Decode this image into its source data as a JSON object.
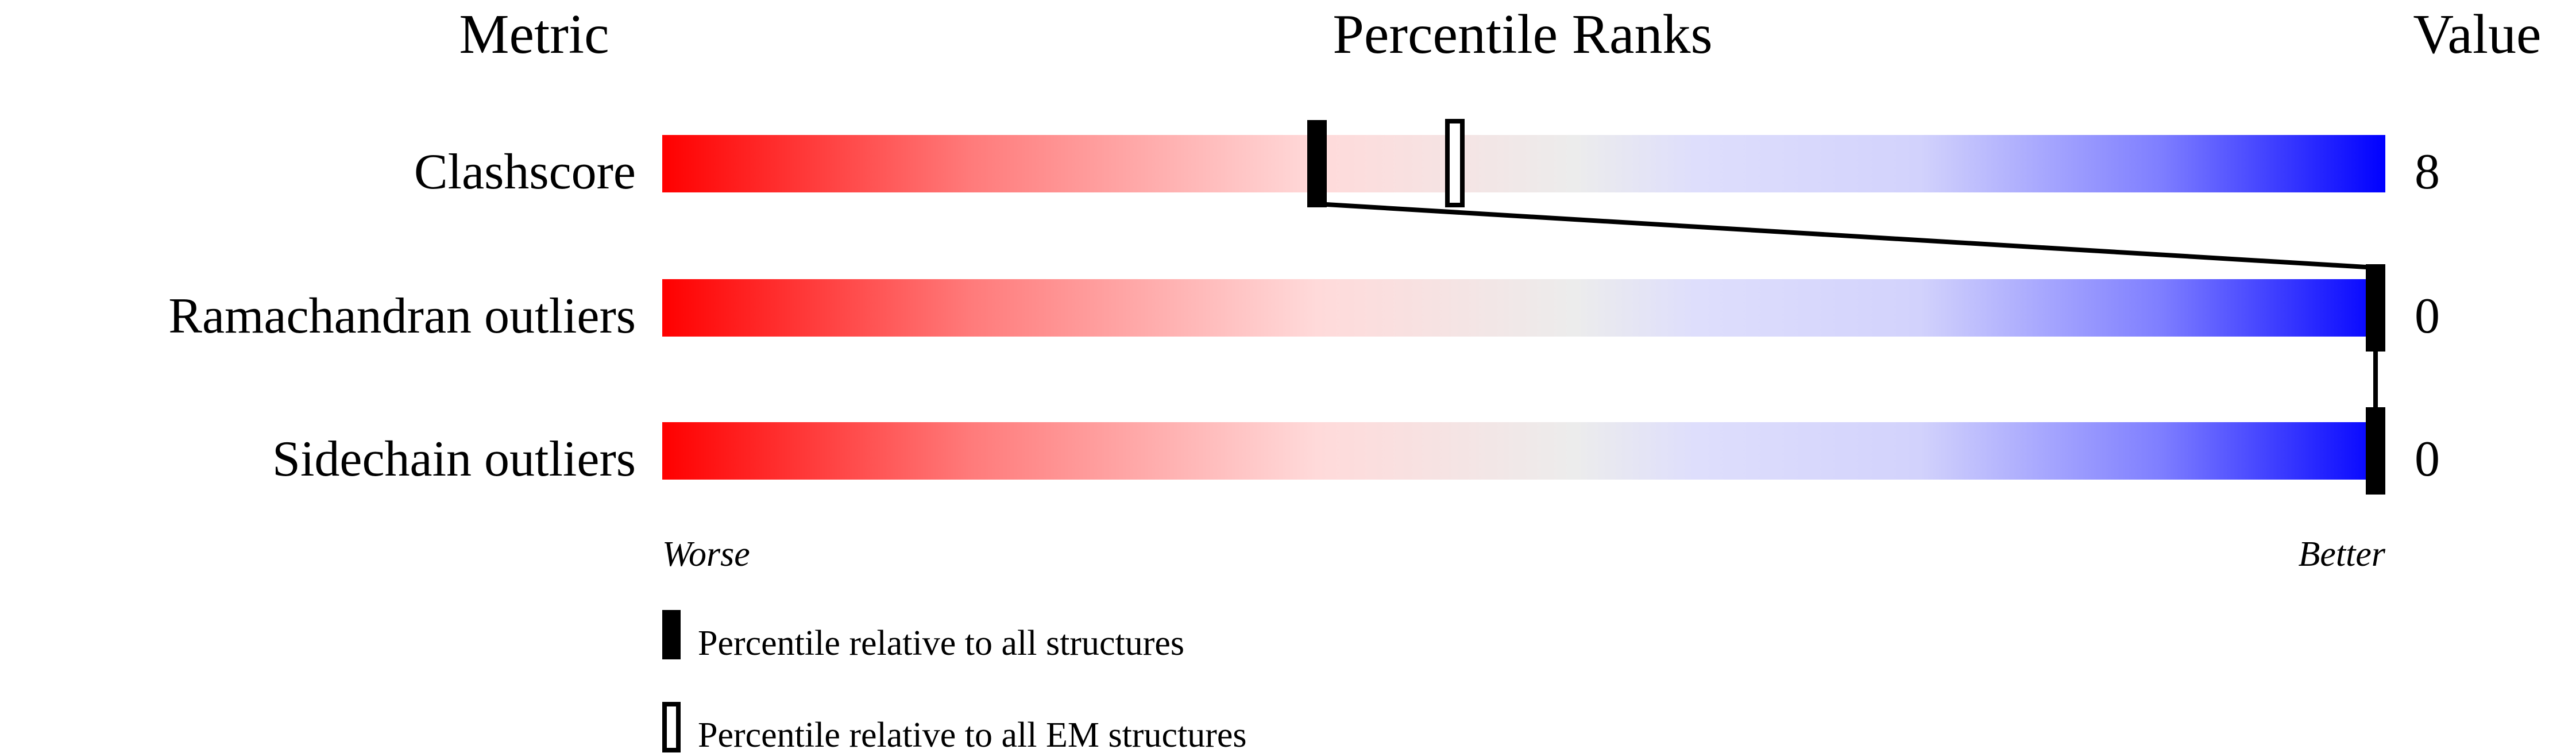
{
  "chart_data": {
    "type": "percentile-slider",
    "headers": {
      "metric": "Metric",
      "percentile": "Percentile Ranks",
      "value": "Value"
    },
    "xlim": [
      0,
      100
    ],
    "scale_labels": {
      "low": "Worse",
      "high": "Better"
    },
    "rows": [
      {
        "metric": "Clashscore",
        "value": "8",
        "percentile_all": 38,
        "percentile_em": 46
      },
      {
        "metric": "Ramachandran outliers",
        "value": "0",
        "percentile_all": 100,
        "percentile_em": 100
      },
      {
        "metric": "Sidechain outliers",
        "value": "0",
        "percentile_all": 100,
        "percentile_em": 100
      }
    ],
    "legend": [
      {
        "marker": "filled",
        "label": "Percentile relative to all structures"
      },
      {
        "marker": "open",
        "label": "Percentile relative to all EM structures"
      }
    ],
    "gradient_colors": {
      "worse": "#ff0000",
      "middle": "#eeeeee",
      "better": "#0000ff"
    }
  }
}
